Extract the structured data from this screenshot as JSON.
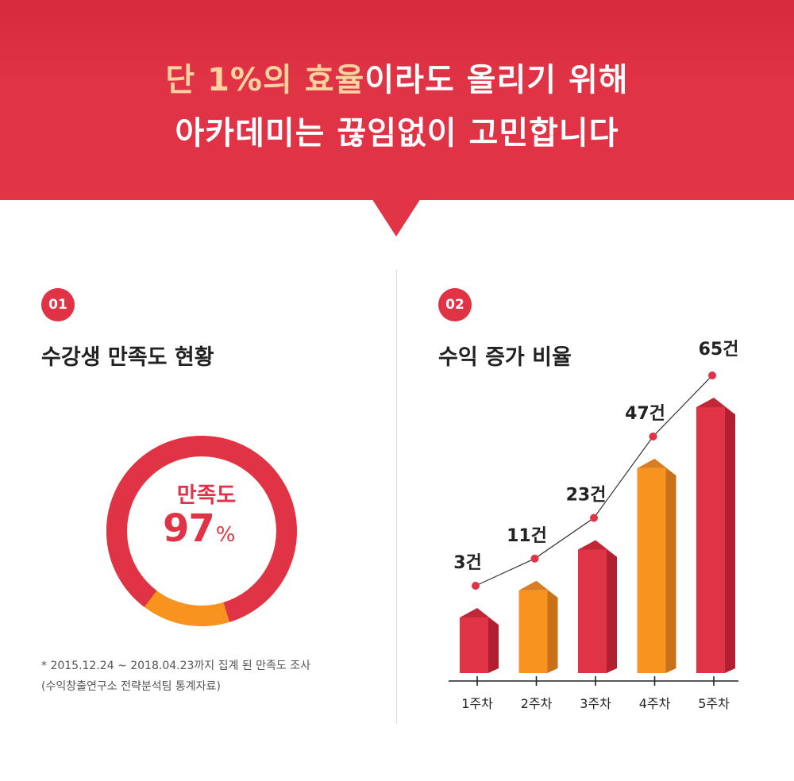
{
  "header": {
    "line1_accent": "단 1%의 효율",
    "line1_rest": "이라도 올리기 위해",
    "line2": "아카데미는 끊임없이 고민합니다"
  },
  "section1": {
    "badge": "01",
    "title": "수강생 만족도 현황",
    "donut_label": "만족도",
    "donut_value": "97",
    "donut_unit": "%",
    "satisfaction_fraction": 0.97,
    "footnote_line1": "* 2015.12.24 ~ 2018.04.23까지 집계 된 만족도 조사",
    "footnote_line2": "(수익창출연구소 전략분석팀 통계자료)"
  },
  "section2": {
    "badge": "02",
    "title": "수익 증가 비율"
  },
  "colors": {
    "brand_red": "#e03345",
    "orange": "#f7931e"
  },
  "chart_data": {
    "type": "bar",
    "categories": [
      "1주차",
      "2주차",
      "3주차",
      "4주차",
      "5주차"
    ],
    "values": [
      3,
      11,
      23,
      47,
      65
    ],
    "data_labels": [
      "3건",
      "11건",
      "23건",
      "47건",
      "65건"
    ],
    "bar_colors": [
      "red",
      "orange",
      "red",
      "orange",
      "red"
    ],
    "overlay": "line"
  }
}
